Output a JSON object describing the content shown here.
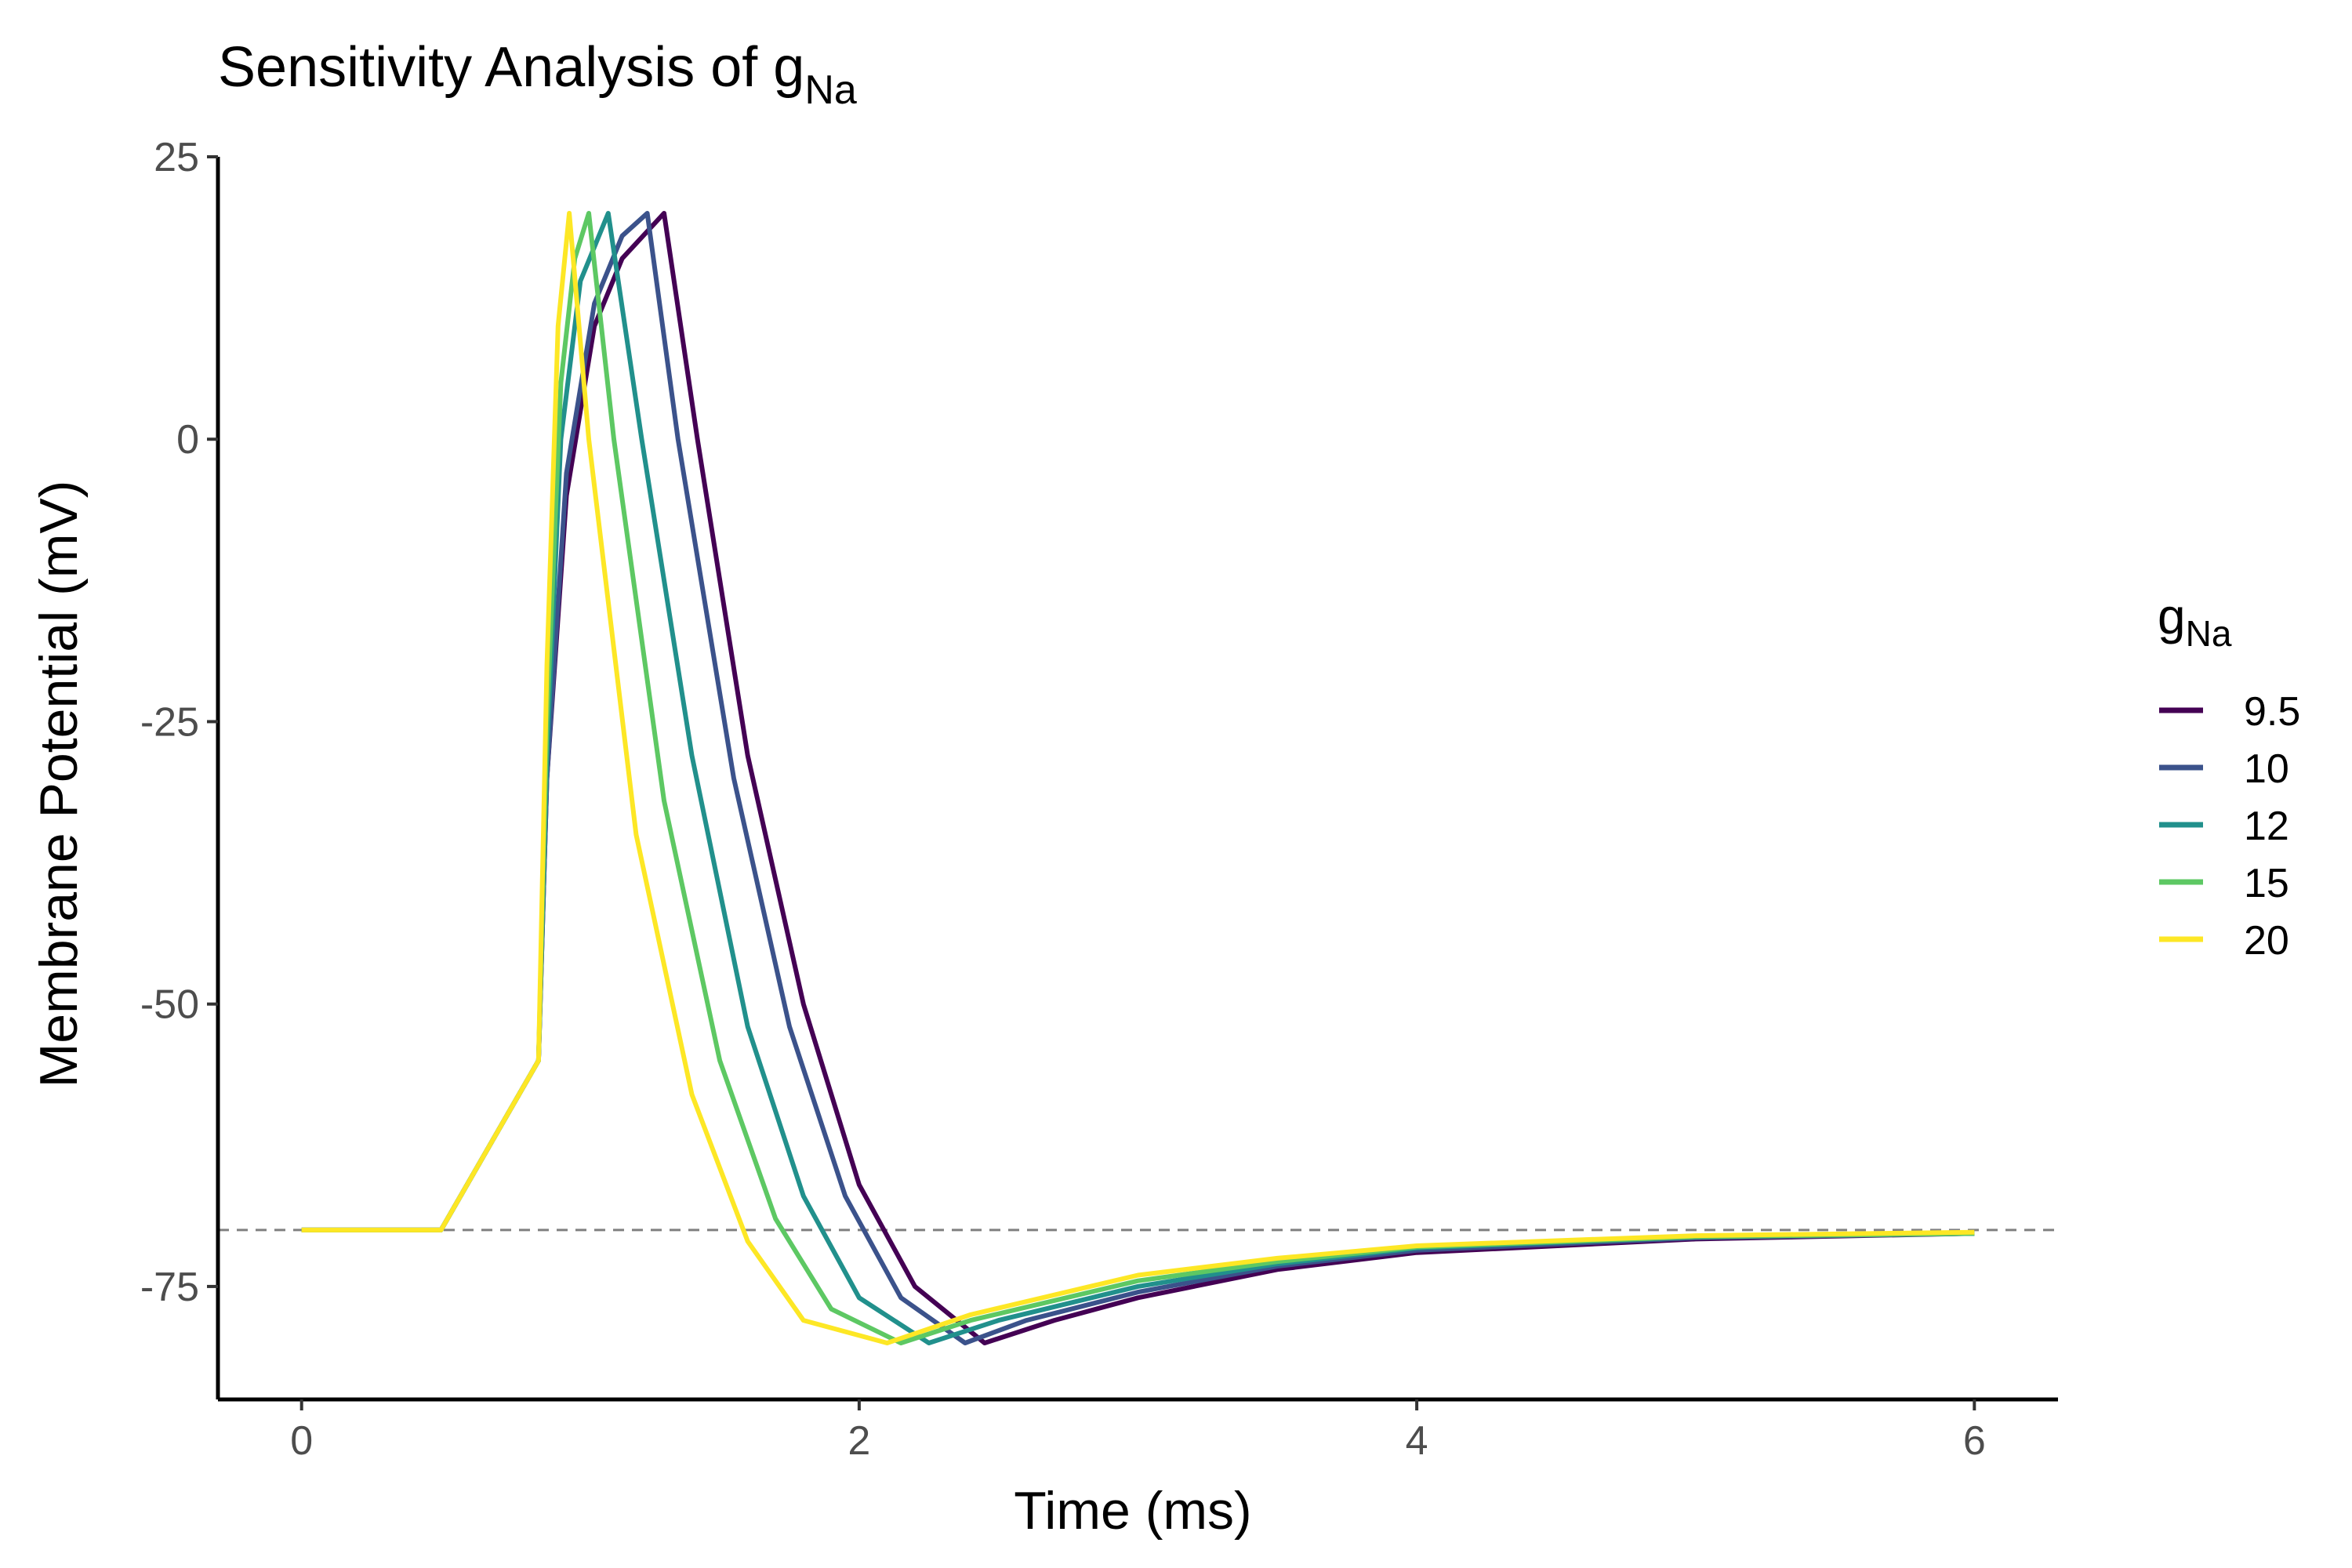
{
  "chart_data": {
    "type": "line",
    "title": {
      "main": "Sensitivity Analysis of g",
      "sub": "Na"
    },
    "xlabel": "Time (ms)",
    "ylabel": "Membrane Potential (mV)",
    "xlim": [
      -0.3,
      6.3
    ],
    "ylim": [
      -85,
      25
    ],
    "x_ticks": [
      0,
      2,
      4,
      6
    ],
    "x_tick_labels": [
      "0",
      "2",
      "4",
      "6"
    ],
    "y_ticks": [
      25,
      0,
      -25,
      -50,
      -75
    ],
    "y_tick_labels": [
      "25",
      "0",
      "-25",
      "-50",
      "-75"
    ],
    "reference_line": {
      "y": -70,
      "style": "dashed",
      "color": "#808080"
    },
    "grid": false,
    "legend": {
      "title": {
        "main": "g",
        "sub": "Na"
      },
      "placement": "right",
      "entries": [
        "9.5",
        "10",
        "12",
        "15",
        "20"
      ]
    },
    "series": [
      {
        "name": "9.5",
        "color": "#440154",
        "x": [
          0,
          0.5,
          0.85,
          0.88,
          0.95,
          1.05,
          1.15,
          1.3,
          1.42,
          1.6,
          1.8,
          2.0,
          2.2,
          2.45,
          2.7,
          3.0,
          3.5,
          4.0,
          5.0,
          6.0
        ],
        "y": [
          -70,
          -70,
          -55,
          -30,
          -5,
          10,
          16,
          20,
          0,
          -28,
          -50,
          -66,
          -75,
          -80,
          -78,
          -76,
          -73.5,
          -72,
          -70.8,
          -70.3
        ]
      },
      {
        "name": "10",
        "color": "#3B528B",
        "x": [
          0,
          0.5,
          0.85,
          0.88,
          0.95,
          1.05,
          1.15,
          1.24,
          1.35,
          1.55,
          1.75,
          1.95,
          2.15,
          2.38,
          2.6,
          3.0,
          3.5,
          4.0,
          5.0,
          6.0
        ],
        "y": [
          -70,
          -70,
          -55,
          -30,
          -3,
          12,
          18,
          20,
          0,
          -30,
          -52,
          -67,
          -76,
          -80,
          -78,
          -75.5,
          -73.2,
          -71.8,
          -70.7,
          -70.3
        ]
      },
      {
        "name": "12",
        "color": "#21908C",
        "x": [
          0,
          0.5,
          0.85,
          0.88,
          0.93,
          1.0,
          1.1,
          1.22,
          1.4,
          1.6,
          1.8,
          2.0,
          2.25,
          2.5,
          3.0,
          3.5,
          4.0,
          5.0,
          6.0
        ],
        "y": [
          -70,
          -70,
          -55,
          -28,
          0,
          14,
          20,
          0,
          -28,
          -52,
          -67,
          -76,
          -80,
          -78,
          -75,
          -73,
          -71.6,
          -70.6,
          -70.3
        ]
      },
      {
        "name": "15",
        "color": "#5DC863",
        "x": [
          0,
          0.5,
          0.85,
          0.88,
          0.93,
          0.98,
          1.03,
          1.12,
          1.3,
          1.5,
          1.7,
          1.9,
          2.15,
          2.4,
          3.0,
          3.5,
          4.0,
          5.0,
          6.0
        ],
        "y": [
          -70,
          -70,
          -55,
          -25,
          5,
          16,
          20,
          0,
          -32,
          -55,
          -69,
          -77,
          -80,
          -78,
          -74.5,
          -72.8,
          -71.5,
          -70.6,
          -70.3
        ]
      },
      {
        "name": "20",
        "color": "#FDE725",
        "x": [
          0,
          0.5,
          0.85,
          0.88,
          0.92,
          0.96,
          1.03,
          1.2,
          1.4,
          1.6,
          1.8,
          2.1,
          2.4,
          3.0,
          3.5,
          4.0,
          5.0,
          6.0
        ],
        "y": [
          -70,
          -70,
          -55,
          -20,
          10,
          20,
          0,
          -35,
          -58,
          -71,
          -78,
          -80,
          -77.5,
          -74,
          -72.5,
          -71.4,
          -70.5,
          -70.2
        ]
      }
    ]
  }
}
